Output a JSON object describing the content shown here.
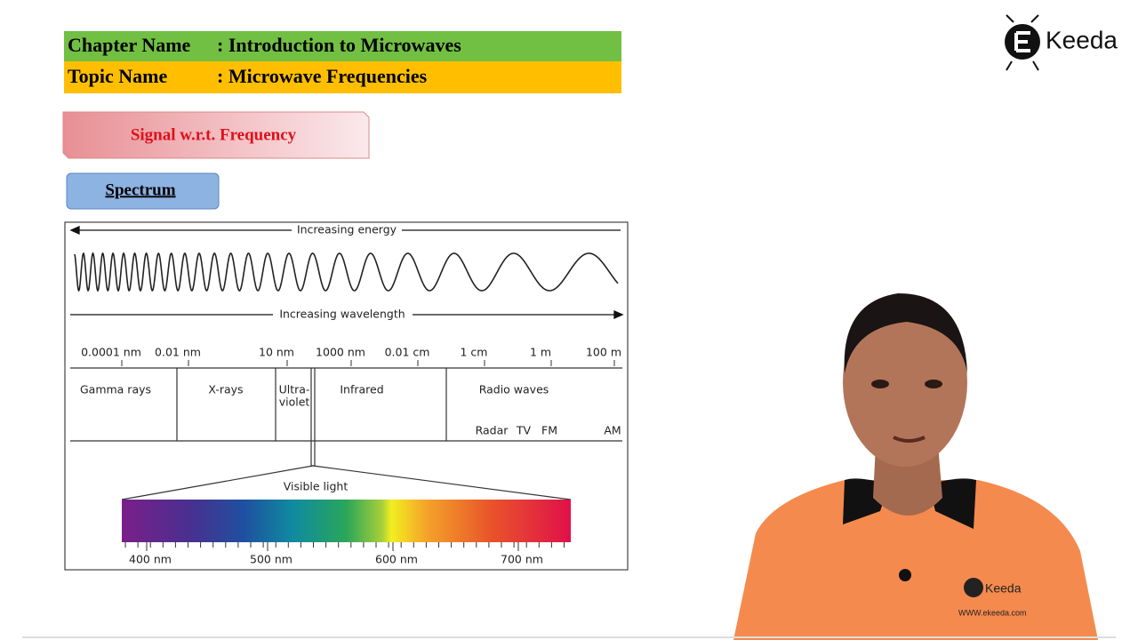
{
  "header": {
    "chapter_label": "Chapter Name",
    "chapter": ": Introduction to Microwaves",
    "topic_label": "Topic Name",
    "topic": ": Microwave Frequencies"
  },
  "logo": "Keeda",
  "section_title": "Signal w.r.t. Frequency",
  "button": "Spectrum",
  "diagram": {
    "energy_label": "Increasing energy",
    "wavelength_label": "Increasing wavelength",
    "scale": [
      "0.0001 nm",
      "0.01 nm",
      "10 nm",
      "1000 nm",
      "0.01 cm",
      "1 cm",
      "1 m",
      "100 m"
    ],
    "regions": [
      {
        "lines": [
          "Gamma rays"
        ]
      },
      {
        "lines": [
          "X-rays"
        ]
      },
      {
        "lines": [
          "Ultra-",
          "violet"
        ]
      },
      {
        "lines": [
          "Infrared"
        ]
      },
      {
        "lines": [
          "Radio waves"
        ]
      }
    ],
    "radio_bands": [
      "Radar",
      "TV",
      "FM",
      "AM"
    ],
    "visible_label": "Visible light",
    "visible_ticks": [
      "400 nm",
      "500 nm",
      "600 nm",
      "700 nm"
    ]
  },
  "shirt": {
    "logo": "Keeda",
    "url": "WWW.ekeeda.com"
  }
}
